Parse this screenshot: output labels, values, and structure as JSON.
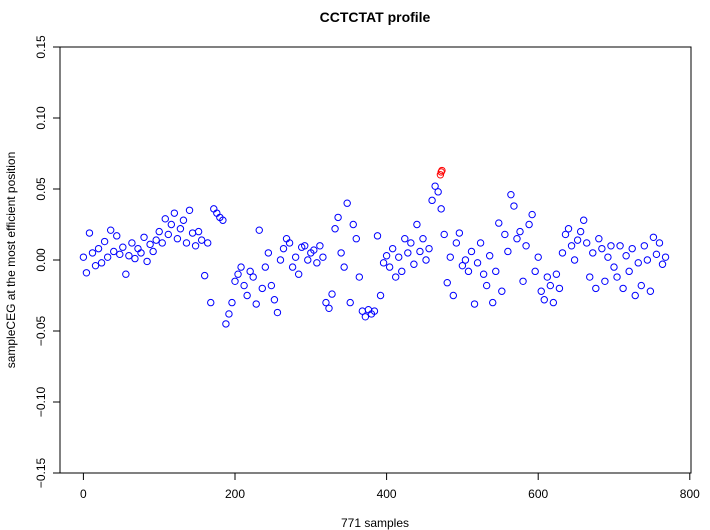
{
  "chart_data": {
    "type": "scatter",
    "title": "CCTCTAT profile",
    "xlabel": "771 samples",
    "ylabel": "sampleCEG at the most efficient position",
    "xlim": [
      0,
      771
    ],
    "ylim": [
      -0.15,
      0.15
    ],
    "xticks": [
      0,
      200,
      400,
      600,
      800
    ],
    "xtick_labels": [
      "0",
      "200",
      "400",
      "600",
      "800"
    ],
    "yticks": [
      -0.15,
      -0.1,
      -0.05,
      0.0,
      0.05,
      0.1,
      0.15
    ],
    "ytick_labels": [
      "−0.15",
      "−0.10",
      "−0.05",
      "0.00",
      "0.05",
      "0.10",
      "0.15"
    ],
    "grid": false,
    "marker": "open-circle",
    "series": [
      {
        "name": "samples",
        "color": "#0000ff",
        "x_step": 4,
        "values": [
          0.002,
          -0.009,
          0.019,
          0.005,
          -0.004,
          0.008,
          -0.002,
          0.013,
          0.002,
          0.021,
          0.006,
          0.017,
          0.004,
          0.009,
          -0.01,
          0.003,
          0.012,
          0.001,
          0.008,
          0.005,
          0.016,
          -0.001,
          0.011,
          0.006,
          0.014,
          0.02,
          0.012,
          0.029,
          0.018,
          0.025,
          0.033,
          0.015,
          0.022,
          0.028,
          0.012,
          0.035,
          0.019,
          0.01,
          0.02,
          0.014,
          -0.011,
          0.012,
          -0.03,
          0.036,
          0.033,
          0.03,
          0.028,
          -0.045,
          -0.038,
          -0.03,
          -0.015,
          -0.01,
          -0.005,
          -0.018,
          -0.025,
          -0.008,
          -0.012,
          -0.031,
          0.021,
          -0.02,
          -0.005,
          0.005,
          -0.018,
          -0.028,
          -0.037,
          0.0,
          0.008,
          0.015,
          0.012,
          -0.005,
          0.002,
          -0.01,
          0.009,
          0.01,
          0.0,
          0.005,
          0.007,
          -0.002,
          0.01,
          0.002,
          -0.03,
          -0.034,
          -0.024,
          0.022,
          0.03,
          0.005,
          -0.005,
          0.04,
          -0.03,
          0.025,
          0.015,
          -0.012,
          -0.036,
          -0.04,
          -0.035,
          -0.038,
          -0.036,
          0.017,
          -0.025,
          -0.002,
          0.003,
          -0.005,
          0.008,
          -0.012,
          0.002,
          -0.008,
          0.015,
          0.005,
          0.012,
          -0.003,
          0.025,
          0.006,
          0.015,
          0.0,
          0.008,
          0.042,
          0.052,
          0.048,
          0.036,
          0.018,
          -0.016,
          0.002,
          -0.025,
          0.012,
          0.019,
          -0.004,
          0.0,
          -0.008,
          0.006,
          -0.031,
          -0.002,
          0.012,
          -0.01,
          -0.018,
          0.003,
          -0.03,
          -0.008,
          0.026,
          -0.022,
          0.018,
          0.006,
          0.046,
          0.038,
          0.015,
          0.02,
          -0.015,
          0.01,
          0.025,
          0.032,
          -0.008,
          0.002,
          -0.022,
          -0.028,
          -0.012,
          -0.018,
          -0.03,
          -0.01,
          -0.02,
          0.005,
          0.018,
          0.022,
          0.01,
          0.0,
          0.014,
          0.02,
          0.028,
          0.012,
          -0.012,
          0.005,
          -0.02,
          0.015,
          0.008,
          -0.015,
          0.002,
          0.01,
          -0.005,
          -0.012,
          0.01,
          -0.02,
          0.003,
          -0.008,
          0.008,
          -0.025,
          -0.002,
          -0.018,
          0.01,
          0.0,
          -0.022,
          0.016,
          0.004,
          0.012,
          -0.003,
          0.002
        ]
      },
      {
        "name": "highlighted",
        "color": "#ff0000",
        "x": [
          471,
          472,
          473
        ],
        "values": [
          0.06,
          0.062,
          0.063
        ]
      }
    ]
  }
}
